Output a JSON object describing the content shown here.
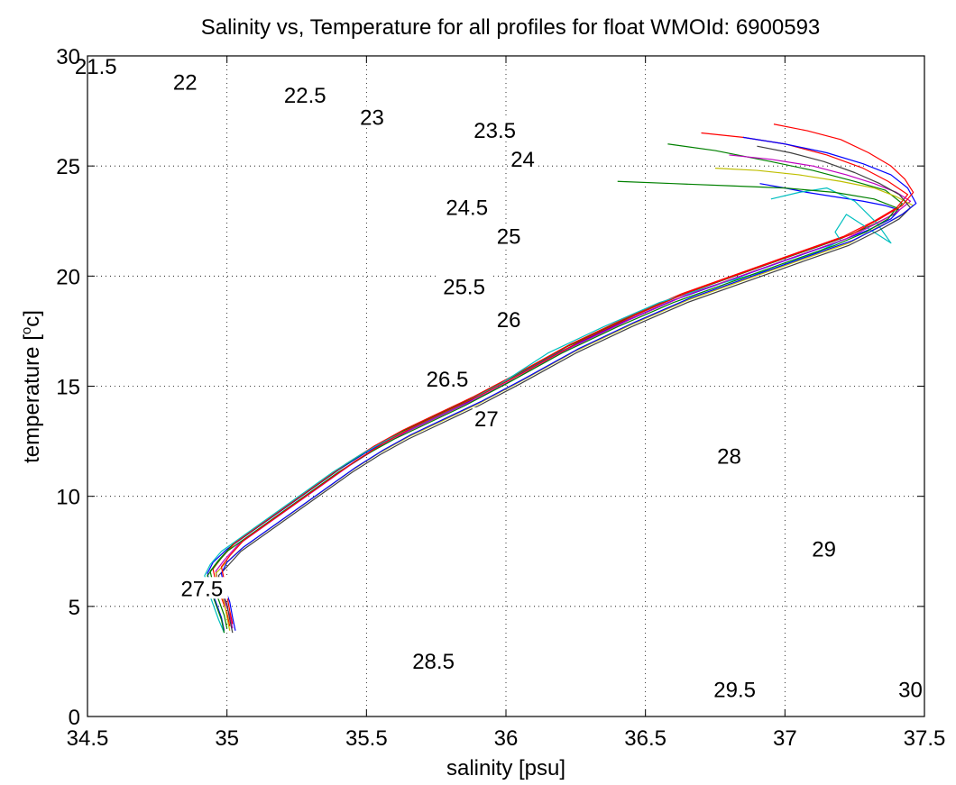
{
  "chart_data": {
    "type": "line",
    "title": "Salinity vs, Temperature for all profiles for float WMOId: 6900593",
    "xlabel": "salinity [psu]",
    "ylabel_main": "temperature [",
    "ylabel_sup": "o",
    "ylabel_tail": "c]",
    "xlim": [
      34.5,
      37.5
    ],
    "ylim": [
      0,
      30
    ],
    "xticks": [
      34.5,
      35,
      35.5,
      36,
      36.5,
      37,
      37.5
    ],
    "xtick_labels": [
      "34.5",
      "35",
      "35.5",
      "36",
      "36.5",
      "37",
      "37.5"
    ],
    "yticks": [
      0,
      5,
      10,
      15,
      20,
      25,
      30
    ],
    "ytick_labels": [
      "0",
      "5",
      "10",
      "15",
      "20",
      "25",
      "30"
    ],
    "grid": true,
    "grid_style": "dotted",
    "isopycnal_color": "#000000",
    "isopycnals": [
      {
        "sigma": 21.5,
        "label": "21.5",
        "label_at": [
          34.53,
          29.5
        ]
      },
      {
        "sigma": 22.0,
        "label": "22",
        "label_at": [
          34.85,
          28.8
        ]
      },
      {
        "sigma": 22.5,
        "label": "22.5",
        "label_at": [
          35.28,
          28.2
        ]
      },
      {
        "sigma": 23.0,
        "label": "23",
        "label_at": [
          35.52,
          27.2
        ]
      },
      {
        "sigma": 23.5,
        "label": "23.5",
        "label_at": [
          35.96,
          26.6
        ]
      },
      {
        "sigma": 24.0,
        "label": "24",
        "label_at": [
          36.06,
          25.3
        ]
      },
      {
        "sigma": 24.5,
        "label": "24.5",
        "label_at": [
          35.86,
          23.1
        ]
      },
      {
        "sigma": 25.0,
        "label": "25",
        "label_at": [
          36.01,
          21.8
        ]
      },
      {
        "sigma": 25.5,
        "label": "25.5",
        "label_at": [
          35.85,
          19.5
        ]
      },
      {
        "sigma": 26.0,
        "label": "26",
        "label_at": [
          36.01,
          18.0
        ]
      },
      {
        "sigma": 26.5,
        "label": "26.5",
        "label_at": [
          35.79,
          15.3
        ]
      },
      {
        "sigma": 27.0,
        "label": "27",
        "label_at": [
          35.93,
          13.5
        ]
      },
      {
        "sigma": 27.5,
        "label": "27.5",
        "label_at": [
          34.91,
          5.8
        ]
      },
      {
        "sigma": 28.0,
        "label": "28",
        "label_at": [
          36.8,
          11.8
        ]
      },
      {
        "sigma": 28.5,
        "label": "28.5",
        "label_at": [
          35.74,
          2.5
        ]
      },
      {
        "sigma": 29.0,
        "label": "29",
        "label_at": [
          37.14,
          7.6
        ]
      },
      {
        "sigma": 29.5,
        "label": "29.5",
        "label_at": [
          36.82,
          1.2
        ]
      },
      {
        "sigma": 30.0,
        "label": "30",
        "label_at": [
          37.45,
          1.2
        ]
      }
    ],
    "series": [
      {
        "color": "#0000ff",
        "x": [
          36.91,
          37.0,
          37.08,
          37.18,
          37.28,
          37.36,
          37.41,
          37.38,
          37.3,
          37.18,
          37.0,
          36.8,
          36.6,
          36.4,
          36.2,
          36.0,
          35.85,
          35.7,
          35.6,
          35.5,
          35.4,
          35.3,
          35.2,
          35.1,
          35.0,
          34.95,
          34.93,
          34.94,
          34.96,
          34.98,
          34.99
        ],
        "y": [
          24.2,
          24.0,
          23.8,
          23.6,
          23.4,
          23.2,
          23.0,
          22.6,
          22.1,
          21.5,
          20.7,
          19.8,
          18.9,
          17.8,
          16.6,
          15.2,
          14.2,
          13.3,
          12.7,
          12.0,
          11.2,
          10.3,
          9.4,
          8.5,
          7.6,
          7.0,
          6.5,
          5.9,
          5.2,
          4.5,
          3.9
        ]
      },
      {
        "color": "#008000",
        "x": [
          36.58,
          36.75,
          36.95,
          37.1,
          37.25,
          37.36,
          37.42,
          37.39,
          37.31,
          37.2,
          37.02,
          36.82,
          36.62,
          36.42,
          36.22,
          36.02,
          35.87,
          35.72,
          35.62,
          35.52,
          35.42,
          35.32,
          35.22,
          35.12,
          35.02,
          34.97,
          34.94,
          34.95,
          34.97,
          34.99,
          35.0
        ],
        "y": [
          26.0,
          25.7,
          25.2,
          24.8,
          24.3,
          23.9,
          23.3,
          22.8,
          22.3,
          21.7,
          20.9,
          20.0,
          19.1,
          18.0,
          16.8,
          15.4,
          14.4,
          13.5,
          12.9,
          12.2,
          11.4,
          10.5,
          9.6,
          8.7,
          7.8,
          7.1,
          6.6,
          6.0,
          5.3,
          4.6,
          4.0
        ]
      },
      {
        "color": "#ff0000",
        "x": [
          36.7,
          36.85,
          37.0,
          37.15,
          37.28,
          37.37,
          37.44,
          37.4,
          37.32,
          37.21,
          37.03,
          36.83,
          36.63,
          36.43,
          36.23,
          36.03,
          35.88,
          35.73,
          35.63,
          35.53,
          35.43,
          35.33,
          35.23,
          35.13,
          35.03,
          34.98,
          34.95,
          34.96,
          34.98,
          35.0,
          35.01
        ],
        "y": [
          26.5,
          26.3,
          26.0,
          25.5,
          24.9,
          24.3,
          23.7,
          23.1,
          22.5,
          21.8,
          21.0,
          20.1,
          19.2,
          18.1,
          16.9,
          15.5,
          14.5,
          13.6,
          13.0,
          12.3,
          11.5,
          10.6,
          9.7,
          8.8,
          7.9,
          7.2,
          6.7,
          6.1,
          5.4,
          4.7,
          4.1
        ]
      },
      {
        "color": "#00bfbf",
        "x": [
          36.95,
          37.05,
          37.15,
          37.25,
          37.33,
          37.38,
          37.22,
          37.18,
          37.2,
          37.1,
          36.95,
          36.75,
          36.55,
          36.35,
          36.15,
          35.98,
          35.83,
          35.68,
          35.58,
          35.48,
          35.38,
          35.28,
          35.18,
          35.08,
          34.98,
          34.94,
          34.92,
          34.93,
          34.95,
          34.97,
          34.99
        ],
        "y": [
          23.5,
          23.8,
          24.0,
          23.4,
          22.4,
          21.5,
          22.8,
          22.0,
          21.6,
          21.0,
          20.3,
          19.6,
          18.8,
          17.7,
          16.5,
          15.1,
          14.1,
          13.2,
          12.6,
          11.9,
          11.1,
          10.2,
          9.3,
          8.4,
          7.5,
          6.9,
          6.4,
          5.8,
          5.1,
          4.4,
          3.8
        ]
      },
      {
        "color": "#bf00bf",
        "x": [
          36.8,
          36.95,
          37.1,
          37.22,
          37.32,
          37.4,
          37.45,
          37.4,
          37.33,
          37.22,
          37.04,
          36.84,
          36.64,
          36.44,
          36.24,
          36.04,
          35.89,
          35.74,
          35.64,
          35.54,
          35.44,
          35.34,
          35.24,
          35.14,
          35.04,
          34.99,
          34.96,
          34.97,
          34.99,
          35.01,
          35.02
        ],
        "y": [
          25.5,
          25.3,
          25.0,
          24.6,
          24.2,
          23.8,
          23.4,
          22.9,
          22.4,
          21.7,
          20.9,
          20.0,
          19.1,
          18.0,
          16.8,
          15.4,
          14.4,
          13.5,
          12.9,
          12.2,
          11.4,
          10.5,
          9.6,
          8.7,
          7.8,
          7.1,
          6.6,
          6.0,
          5.3,
          4.6,
          4.0
        ]
      },
      {
        "color": "#bfbf00",
        "x": [
          36.75,
          36.9,
          37.05,
          37.2,
          37.32,
          37.4,
          37.46,
          37.41,
          37.33,
          37.23,
          37.05,
          36.85,
          36.65,
          36.45,
          36.25,
          36.05,
          35.9,
          35.75,
          35.65,
          35.55,
          35.45,
          35.35,
          35.25,
          35.15,
          35.05,
          34.99,
          34.96,
          34.97,
          34.99,
          35.0,
          35.01
        ],
        "y": [
          24.9,
          24.8,
          24.6,
          24.3,
          24.0,
          23.6,
          23.2,
          22.7,
          22.2,
          21.5,
          20.7,
          19.8,
          18.9,
          17.8,
          16.6,
          15.2,
          14.2,
          13.3,
          12.7,
          12.0,
          11.2,
          10.3,
          9.4,
          8.5,
          7.6,
          6.9,
          6.5,
          5.9,
          5.2,
          4.5,
          3.9
        ]
      },
      {
        "color": "#404040",
        "x": [
          36.9,
          37.02,
          37.14,
          37.25,
          37.34,
          37.41,
          37.45,
          37.41,
          37.34,
          37.23,
          37.05,
          36.85,
          36.65,
          36.45,
          36.25,
          36.05,
          35.9,
          35.75,
          35.65,
          35.55,
          35.45,
          35.35,
          35.25,
          35.15,
          35.05,
          35.0,
          34.97,
          34.98,
          35.0,
          35.01,
          35.02
        ],
        "y": [
          25.9,
          25.6,
          25.2,
          24.7,
          24.2,
          23.7,
          23.1,
          22.6,
          22.1,
          21.4,
          20.6,
          19.7,
          18.8,
          17.7,
          16.5,
          15.1,
          14.1,
          13.2,
          12.6,
          11.9,
          11.1,
          10.2,
          9.3,
          8.4,
          7.5,
          6.8,
          6.4,
          5.8,
          5.1,
          4.4,
          3.8
        ]
      },
      {
        "color": "#0000ff",
        "x": [
          36.85,
          37.0,
          37.15,
          37.28,
          37.38,
          37.44,
          37.47,
          37.42,
          37.35,
          37.24,
          37.06,
          36.86,
          36.66,
          36.46,
          36.26,
          36.06,
          35.91,
          35.76,
          35.66,
          35.56,
          35.46,
          35.36,
          35.26,
          35.16,
          35.06,
          35.0,
          34.98,
          34.99,
          35.01,
          35.02,
          35.03
        ],
        "y": [
          26.3,
          26.0,
          25.6,
          25.1,
          24.6,
          24.0,
          23.3,
          22.8,
          22.3,
          21.6,
          20.8,
          19.9,
          19.0,
          17.9,
          16.7,
          15.3,
          14.3,
          13.4,
          12.8,
          12.1,
          11.3,
          10.4,
          9.5,
          8.6,
          7.7,
          7.0,
          6.5,
          5.9,
          5.2,
          4.5,
          3.9
        ]
      },
      {
        "color": "#008000",
        "x": [
          36.4,
          36.6,
          36.8,
          37.0,
          37.18,
          37.32,
          37.4,
          37.37,
          37.29,
          37.18,
          37.0,
          36.8,
          36.6,
          36.4,
          36.2,
          36.0,
          35.85,
          35.7,
          35.6,
          35.5,
          35.4,
          35.3,
          35.2,
          35.1,
          35.0,
          34.96,
          34.93,
          34.94,
          34.96,
          34.98,
          34.99
        ],
        "y": [
          24.3,
          24.2,
          24.1,
          24.0,
          23.8,
          23.5,
          23.1,
          22.6,
          22.0,
          21.4,
          20.6,
          19.7,
          18.8,
          17.7,
          16.5,
          15.1,
          14.1,
          13.2,
          12.6,
          11.9,
          11.1,
          10.2,
          9.3,
          8.4,
          7.5,
          6.9,
          6.4,
          5.8,
          5.1,
          4.4,
          3.8
        ]
      },
      {
        "color": "#ff0000",
        "x": [
          36.96,
          37.08,
          37.2,
          37.3,
          37.38,
          37.43,
          37.46,
          37.42,
          37.34,
          37.24,
          37.06,
          36.86,
          36.66,
          36.46,
          36.26,
          36.06,
          35.91,
          35.76,
          35.66,
          35.56,
          35.46,
          35.36,
          35.26,
          35.16,
          35.06,
          35.01,
          34.98,
          34.99,
          35.0,
          35.01,
          35.02
        ],
        "y": [
          26.9,
          26.6,
          26.2,
          25.6,
          25.0,
          24.4,
          23.8,
          23.2,
          22.6,
          21.9,
          21.1,
          20.2,
          19.3,
          18.2,
          17.0,
          15.6,
          14.6,
          13.7,
          13.1,
          12.4,
          11.6,
          10.7,
          9.8,
          8.9,
          8.0,
          7.3,
          6.8,
          6.2,
          5.5,
          4.8,
          4.2
        ]
      }
    ]
  }
}
